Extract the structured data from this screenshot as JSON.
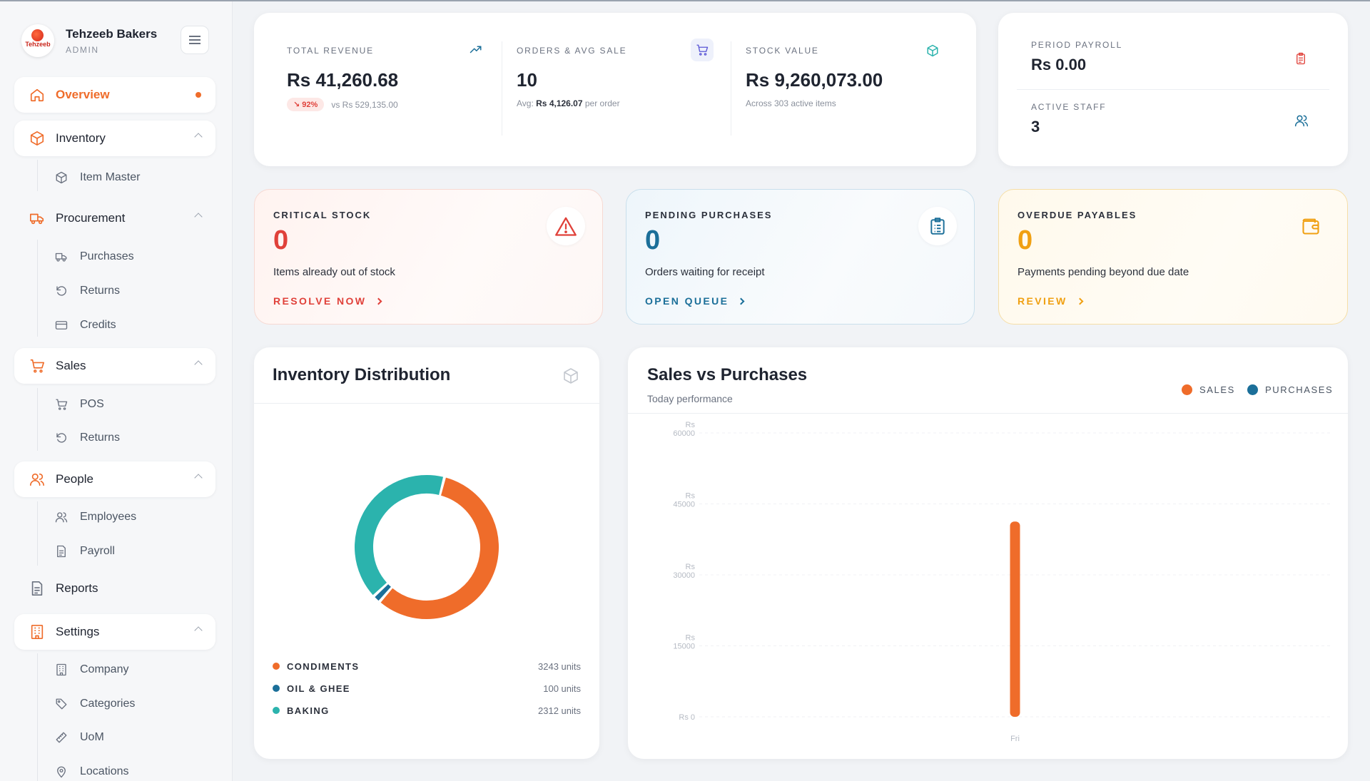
{
  "brand": {
    "logo_text": "Tehzeeb",
    "name": "Tehzeeb Bakers",
    "role": "ADMIN"
  },
  "sidebar": {
    "overview": "Overview",
    "inventory": {
      "label": "Inventory",
      "items": [
        "Item Master"
      ]
    },
    "procurement": {
      "label": "Procurement",
      "items": [
        "Purchases",
        "Returns",
        "Credits"
      ]
    },
    "sales": {
      "label": "Sales",
      "items": [
        "POS",
        "Returns"
      ]
    },
    "people": {
      "label": "People",
      "items": [
        "Employees",
        "Payroll"
      ]
    },
    "reports": "Reports",
    "settings": {
      "label": "Settings",
      "items": [
        "Company",
        "Categories",
        "UoM",
        "Locations"
      ]
    }
  },
  "kpis": {
    "revenue": {
      "label": "TOTAL REVENUE",
      "value": "Rs 41,260.68",
      "badge": "92%",
      "compare": "vs Rs 529,135.00"
    },
    "orders": {
      "label": "ORDERS & AVG SALE",
      "value": "10",
      "avg_prefix": "Avg:",
      "avg_value": "Rs 4,126.07",
      "avg_suffix": "per order"
    },
    "stock": {
      "label": "STOCK VALUE",
      "value": "Rs 9,260,073.00",
      "sub": "Across 303 active items"
    },
    "payroll": {
      "label": "PERIOD PAYROLL",
      "value": "Rs 0.00"
    },
    "staff": {
      "label": "ACTIVE STAFF",
      "value": "3"
    }
  },
  "alerts": {
    "critical": {
      "title": "CRITICAL STOCK",
      "value": "0",
      "desc": "Items already out of stock",
      "link": "RESOLVE NOW",
      "color": "#e0413a"
    },
    "pending": {
      "title": "PENDING PURCHASES",
      "value": "0",
      "desc": "Orders waiting for receipt",
      "link": "OPEN QUEUE",
      "color": "#1b6f99"
    },
    "overdue": {
      "title": "OVERDUE PAYABLES",
      "value": "0",
      "desc": "Payments pending beyond due date",
      "link": "REVIEW",
      "color": "#f0a012"
    }
  },
  "inventory_distribution": {
    "title": "Inventory Distribution",
    "legend": [
      {
        "name": "CONDIMENTS",
        "value": "3243 units",
        "color": "#ef6c2a"
      },
      {
        "name": "OIL & GHEE",
        "value": "100 units",
        "color": "#1b6f99"
      },
      {
        "name": "BAKING",
        "value": "2312 units",
        "color": "#2bb3ad"
      }
    ]
  },
  "sales_chart": {
    "title": "Sales vs Purchases",
    "subtitle": "Today performance",
    "legend": [
      {
        "name": "SALES",
        "color": "#ef6c2a"
      },
      {
        "name": "PURCHASES",
        "color": "#1b6f99"
      }
    ]
  },
  "chart_data": [
    {
      "type": "pie",
      "title": "Inventory Distribution",
      "categories": [
        "CONDIMENTS",
        "OIL & GHEE",
        "BAKING"
      ],
      "values": [
        3243,
        100,
        2312
      ],
      "unit": "units"
    },
    {
      "type": "bar",
      "title": "Sales vs Purchases",
      "subtitle": "Today performance",
      "categories": [
        "Fri"
      ],
      "series": [
        {
          "name": "SALES",
          "values": [
            41260.68
          ],
          "color": "#ef6c2a"
        },
        {
          "name": "PURCHASES",
          "values": [
            0
          ],
          "color": "#1b6f99"
        }
      ],
      "yticks": [
        {
          "value": 0,
          "prefix": "Rs",
          "label": "0"
        },
        {
          "value": 15000,
          "prefix": "Rs",
          "label": "15000"
        },
        {
          "value": 30000,
          "prefix": "Rs",
          "label": "30000"
        },
        {
          "value": 45000,
          "prefix": "Rs",
          "label": "45000"
        },
        {
          "value": 60000,
          "prefix": "Rs",
          "label": "60000"
        }
      ],
      "ylim": [
        0,
        60000
      ],
      "grid": true
    }
  ]
}
